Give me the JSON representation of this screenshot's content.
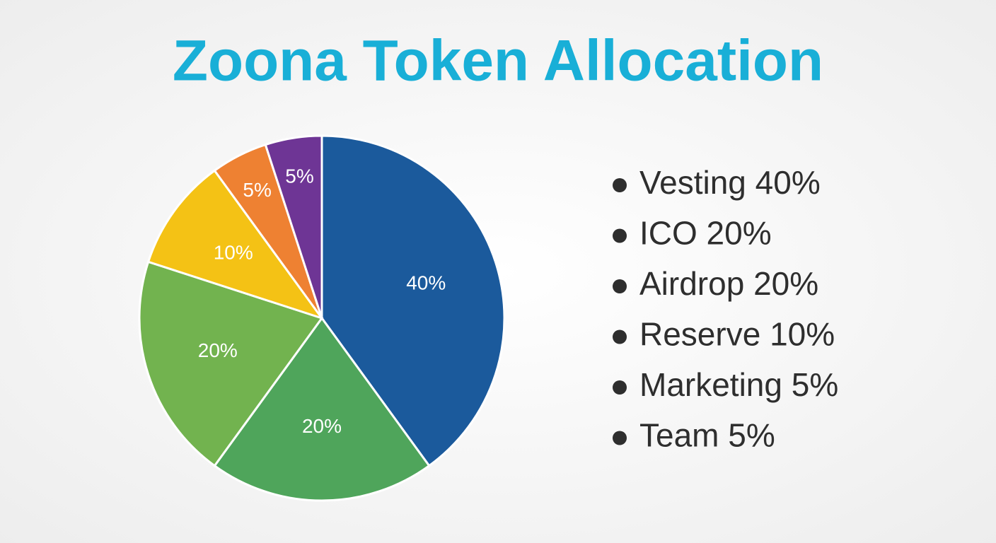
{
  "chart_data": {
    "type": "pie",
    "title": "Zoona Token Allocation",
    "categories": [
      "Vesting 40%",
      "ICO 20%",
      "Airdrop 20%",
      "Reserve 10%",
      "Marketing 5%",
      "Team 5%"
    ],
    "values": [
      40,
      20,
      20,
      10,
      5,
      5
    ],
    "value_labels": [
      "40%",
      "20%",
      "20%",
      "10%",
      "5%",
      "5%"
    ],
    "colors": [
      "#1b5a9c",
      "#4fa55b",
      "#72b34f",
      "#f4c215",
      "#ee8132",
      "#6e3595"
    ]
  }
}
